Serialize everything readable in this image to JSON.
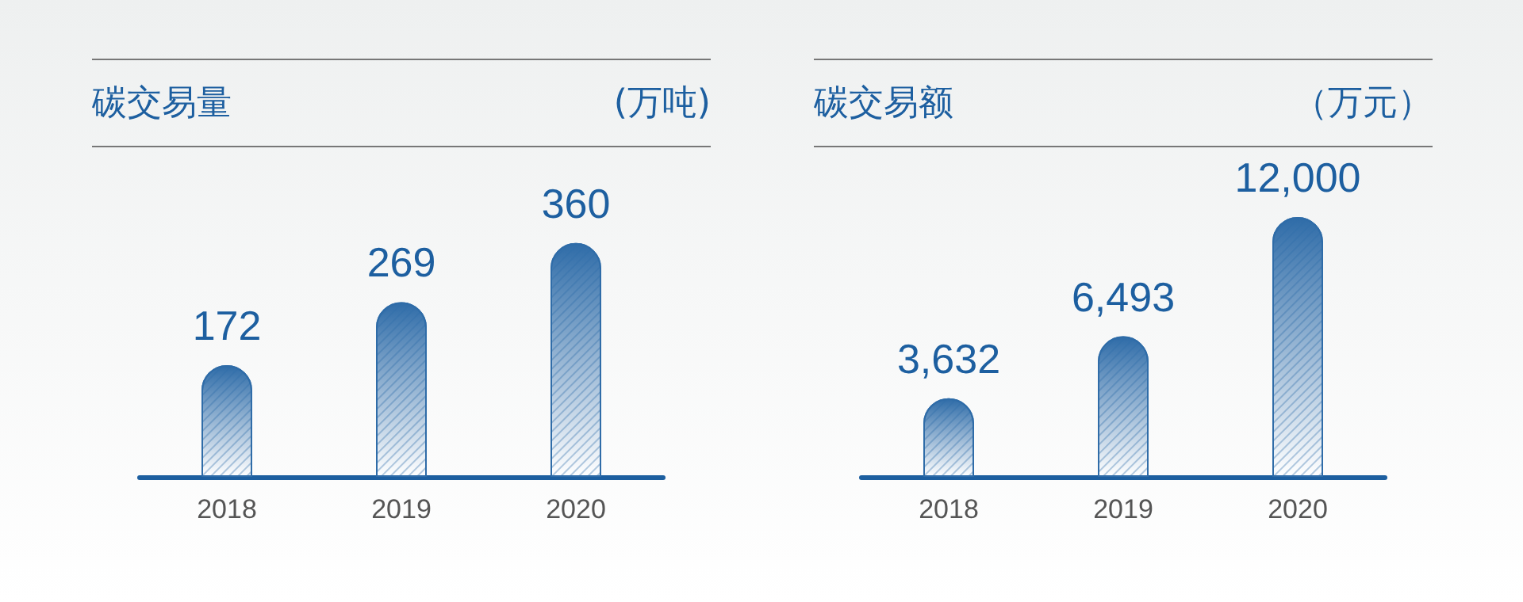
{
  "chart_data": [
    {
      "type": "bar",
      "title": "碳交易量",
      "ylabel": "(万吨)",
      "categories": [
        "2018",
        "2019",
        "2020"
      ],
      "data_labels": true,
      "series": [
        {
          "color": "#2f6ca8",
          "values": [
            172,
            269,
            360
          ]
        }
      ]
    },
    {
      "type": "bar",
      "title": "碳交易额",
      "ylabel": "（万元）",
      "categories": [
        "2018",
        "2019",
        "2020"
      ],
      "series": [
        {
          "color": "#2f6ca8",
          "values": [
            3632,
            6493,
            12000
          ],
          "value_labels": [
            "3,632",
            "6,493",
            "12,000"
          ]
        }
      ]
    }
  ]
}
